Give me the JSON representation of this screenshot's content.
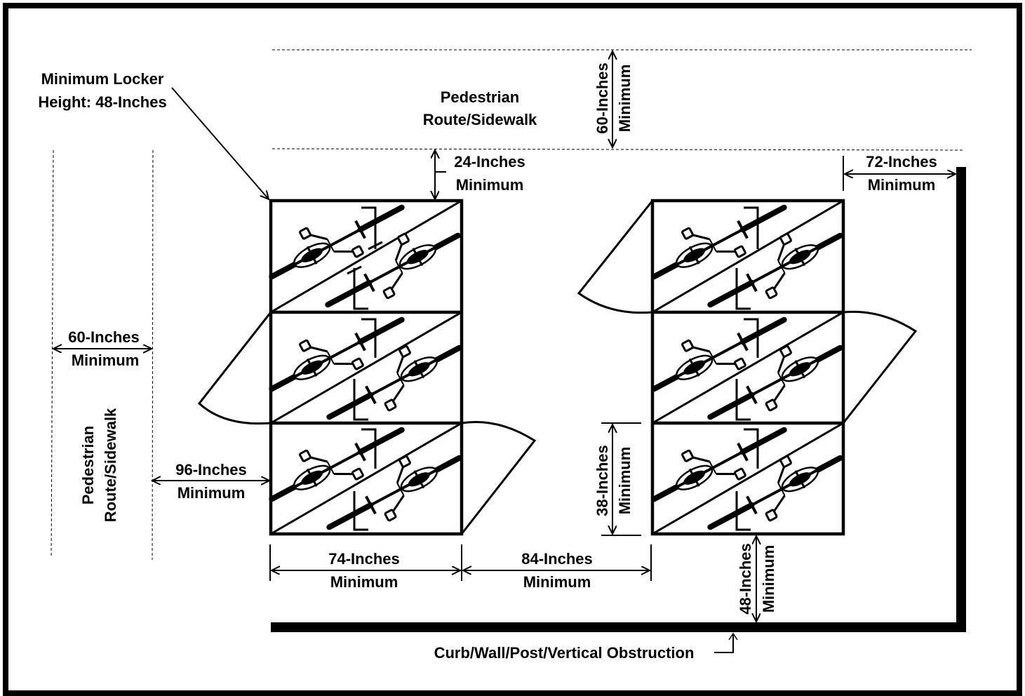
{
  "labels": {
    "min_locker_height_l1": "Minimum Locker",
    "min_locker_height_l2": "Height:  48-Inches",
    "ped_top_l1": "Pedestrian",
    "ped_top_l2": "Route/Sidewalk",
    "top_60_l1": "60-Inches",
    "top_60_l2": "Minimum",
    "dim_24_l1": "24-Inches",
    "dim_24_l2": "Minimum",
    "dim_72_l1": "72-Inches",
    "dim_72_l2": "Minimum",
    "left_60_l1": "60-Inches",
    "left_60_l2": "Minimum",
    "ped_left_l1": "Pedestrian",
    "ped_left_l2": "Route/Sidewalk",
    "dim_96_l1": "96-Inches",
    "dim_96_l2": "Minimum",
    "dim_38_l1": "38-Inches",
    "dim_38_l2": "Minimum",
    "dim_74_l1": "74-Inches",
    "dim_74_l2": "Minimum",
    "dim_84_l1": "84-Inches",
    "dim_84_l2": "Minimum",
    "dim_48_l1": "48-Inches",
    "dim_48_l2": "Minimum",
    "curb": "Curb/Wall/Post/Vertical Obstruction"
  },
  "icons": {
    "bicycle": "bicycle-icon",
    "arrow": "dimension-arrow-icon"
  }
}
